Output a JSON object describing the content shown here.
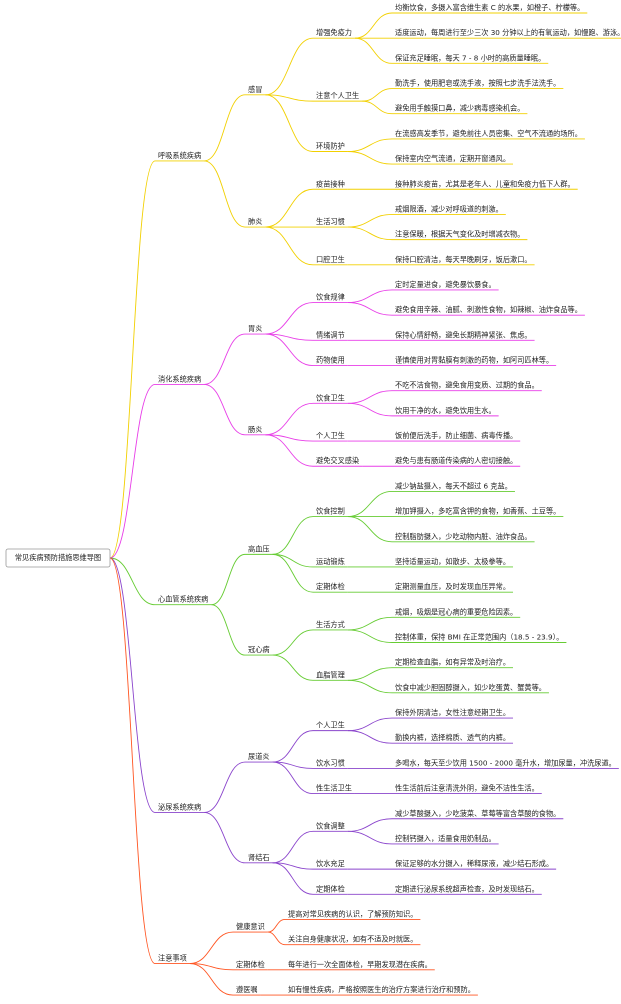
{
  "title": "常见疾病预防措施思维导图",
  "branches": [
    {
      "label": "呼吸系统疾病",
      "color": "#f2d000",
      "children": [
        {
          "label": "感冒",
          "children": [
            {
              "label": "增强免疫力",
              "children": [
                "均衡饮食，多摄入富含维生素 C 的水果，如橙子、柠檬等。",
                "适度运动，每周进行至少三次 30 分钟以上的有氧运动，如慢跑、游泳。",
                "保证充足睡眠，每天 7 - 8 小时的高质量睡眠。"
              ]
            },
            {
              "label": "注意个人卫生",
              "children": [
                "勤洗手，使用肥皂或洗手液，按照七步洗手法洗手。",
                "避免用手触摸口鼻，减少病毒感染机会。"
              ]
            },
            {
              "label": "环境防护",
              "children": [
                "在流感高发季节，避免前往人员密集、空气不流通的场所。",
                "保持室内空气流通，定期开窗通风。"
              ]
            }
          ]
        },
        {
          "label": "肺炎",
          "children": [
            {
              "label": "疫苗接种",
              "children": [
                "接种肺炎疫苗，尤其是老年人、儿童和免疫力低下人群。"
              ]
            },
            {
              "label": "生活习惯",
              "children": [
                "戒烟限酒，减少对呼吸道的刺激。",
                "注意保暖，根据天气变化及时增减衣物。"
              ]
            },
            {
              "label": "口腔卫生",
              "children": [
                "保持口腔清洁，每天早晚刷牙，饭后漱口。"
              ]
            }
          ]
        }
      ]
    },
    {
      "label": "消化系统疾病",
      "color": "#e83ee8",
      "children": [
        {
          "label": "胃炎",
          "children": [
            {
              "label": "饮食规律",
              "children": [
                "定时定量进食，避免暴饮暴食。",
                "避免食用辛辣、油腻、刺激性食物，如辣椒、油炸食品等。"
              ]
            },
            {
              "label": "情绪调节",
              "children": [
                "保持心情舒畅，避免长期精神紧张、焦虑。"
              ]
            },
            {
              "label": "药物使用",
              "children": [
                "谨慎使用对胃黏膜有刺激的药物，如阿司匹林等。"
              ]
            }
          ]
        },
        {
          "label": "肠炎",
          "children": [
            {
              "label": "饮食卫生",
              "children": [
                "不吃不洁食物，避免食用变质、过期的食品。",
                "饮用干净的水，避免饮用生水。"
              ]
            },
            {
              "label": "个人卫生",
              "children": [
                "饭前便后洗手，防止细菌、病毒传播。"
              ]
            },
            {
              "label": "避免交叉感染",
              "children": [
                "避免与患有肠道传染病的人密切接触。"
              ]
            }
          ]
        }
      ]
    },
    {
      "label": "心血管系统疾病",
      "color": "#66cc33",
      "children": [
        {
          "label": "高血压",
          "children": [
            {
              "label": "饮食控制",
              "children": [
                "减少钠盐摄入，每天不超过 6 克盐。",
                "增加钾摄入，多吃富含钾的食物，如香蕉、土豆等。",
                "控制脂肪摄入，少吃动物内脏、油炸食品。"
              ]
            },
            {
              "label": "运动锻炼",
              "children": [
                "坚持适量运动，如散步、太极拳等。"
              ]
            },
            {
              "label": "定期体检",
              "children": [
                "定期测量血压，及时发现血压异常。"
              ]
            }
          ]
        },
        {
          "label": "冠心病",
          "children": [
            {
              "label": "生活方式",
              "children": [
                "戒烟，吸烟是冠心病的重要危险因素。",
                "控制体重，保持 BMI 在正常范围内（18.5 - 23.9）。"
              ]
            },
            {
              "label": "血脂管理",
              "children": [
                "定期检查血脂，如有异常及时治疗。",
                "饮食中减少胆固醇摄入，如少吃蛋黄、蟹黄等。"
              ]
            }
          ]
        }
      ]
    },
    {
      "label": "泌尿系统疾病",
      "color": "#8a44cc",
      "children": [
        {
          "label": "尿道炎",
          "children": [
            {
              "label": "个人卫生",
              "children": [
                "保持外阴清洁，女性注意经期卫生。",
                "勤换内裤，选择棉质、透气的内裤。"
              ]
            },
            {
              "label": "饮水习惯",
              "children": [
                "多喝水，每天至少饮用 1500 - 2000 毫升水，增加尿量，冲洗尿道。"
              ]
            },
            {
              "label": "性生活卫生",
              "children": [
                "性生活前后注意清洗外阴，避免不洁性生活。"
              ]
            }
          ]
        },
        {
          "label": "肾结石",
          "children": [
            {
              "label": "饮食调整",
              "children": [
                "减少草酸摄入，少吃菠菜、草莓等富含草酸的食物。",
                "控制钙摄入，适量食用奶制品。"
              ]
            },
            {
              "label": "饮水充足",
              "children": [
                "保证足够的水分摄入，稀释尿液，减少结石形成。"
              ]
            },
            {
              "label": "定期体检",
              "children": [
                "定期进行泌尿系统超声检查，及时发现结石。"
              ]
            }
          ]
        }
      ]
    },
    {
      "label": "注意事项",
      "color": "#ff5522",
      "children": [
        {
          "label": "健康意识",
          "children": [
            "提高对常见疾病的认识，了解预防知识。",
            "关注自身健康状况，如有不适及时就医。"
          ]
        },
        {
          "label": "定期体检",
          "children": [
            "每年进行一次全面体检，早期发现潜在疾病。"
          ]
        },
        {
          "label": "遵医嘱",
          "children": [
            "如有慢性疾病，严格按照医生的治疗方案进行治疗和预防。"
          ]
        }
      ]
    }
  ]
}
